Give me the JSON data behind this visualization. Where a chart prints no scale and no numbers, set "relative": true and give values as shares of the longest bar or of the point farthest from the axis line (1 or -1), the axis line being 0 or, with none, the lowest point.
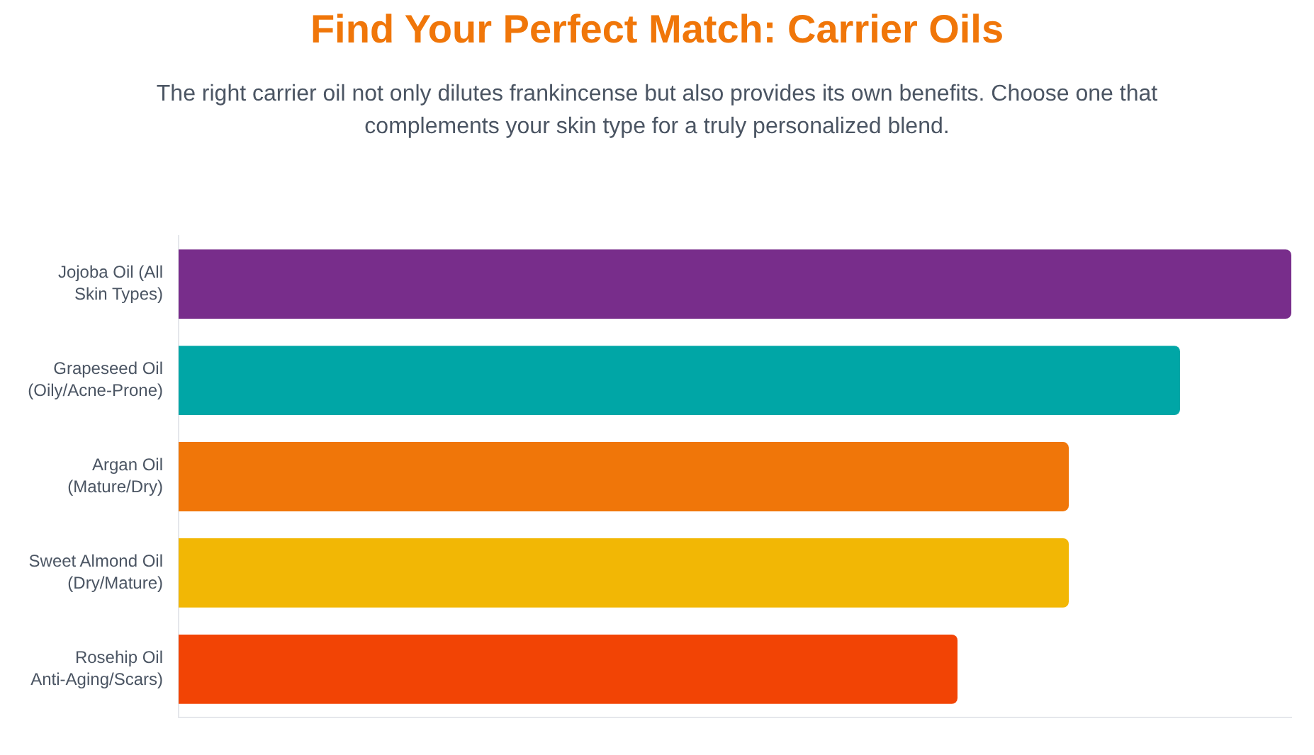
{
  "chart_data": {
    "type": "bar",
    "orientation": "horizontal",
    "relative": true,
    "grid": false,
    "title": "Find Your Perfect Match: Carrier Oils",
    "subtitle": "The right carrier oil not only dilutes frankincense but also provides its own benefits. Choose one that complements your skin type for a truly personalized blend.",
    "categories": [
      "Jojoba Oil (All Skin Types)",
      "Grapeseed Oil (Oily/Acne-Prone)",
      "Argan Oil (Mature/Dry)",
      "Sweet Almond Oil (Dry/Mature)",
      "Rosehip Oil Anti-Aging/Scars)"
    ],
    "values": [
      1,
      0.9,
      0.8,
      0.8,
      0.7
    ],
    "colors": [
      "#782d8b",
      "#00a6a6",
      "#f07609",
      "#f2b705",
      "#f24405"
    ]
  }
}
